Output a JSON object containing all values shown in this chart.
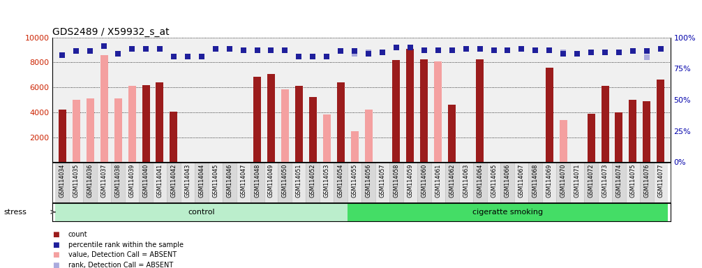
{
  "title": "GDS2489 / X59932_s_at",
  "samples": [
    "GSM114034",
    "GSM114035",
    "GSM114036",
    "GSM114037",
    "GSM114038",
    "GSM114039",
    "GSM114040",
    "GSM114041",
    "GSM114042",
    "GSM114043",
    "GSM114044",
    "GSM114045",
    "GSM114046",
    "GSM114047",
    "GSM114048",
    "GSM114049",
    "GSM114050",
    "GSM114051",
    "GSM114052",
    "GSM114053",
    "GSM114054",
    "GSM114055",
    "GSM114056",
    "GSM114057",
    "GSM114058",
    "GSM114059",
    "GSM114060",
    "GSM114061",
    "GSM114062",
    "GSM114063",
    "GSM114064",
    "GSM114065",
    "GSM114066",
    "GSM114067",
    "GSM114068",
    "GSM114069",
    "GSM114070",
    "GSM114071",
    "GSM114072",
    "GSM114073",
    "GSM114074",
    "GSM114075",
    "GSM114076",
    "GSM114077"
  ],
  "count": [
    4200,
    null,
    null,
    null,
    null,
    null,
    6200,
    6400,
    4050,
    null,
    null,
    null,
    null,
    null,
    6850,
    7050,
    null,
    6100,
    5200,
    null,
    6400,
    null,
    null,
    null,
    8200,
    9100,
    8250,
    null,
    4600,
    null,
    8250,
    null,
    null,
    null,
    null,
    7600,
    null,
    null,
    3900,
    6100,
    4000,
    5000,
    4900,
    6600
  ],
  "count_absent": [
    null,
    5000,
    5100,
    8600,
    5100,
    6100,
    null,
    null,
    null,
    null,
    null,
    null,
    null,
    null,
    null,
    null,
    5850,
    null,
    null,
    3800,
    null,
    2500,
    4200,
    null,
    null,
    null,
    null,
    8100,
    null,
    null,
    null,
    null,
    null,
    null,
    null,
    null,
    3400,
    null,
    null,
    null,
    null,
    null,
    null,
    null
  ],
  "rank": [
    86,
    89,
    89,
    93,
    87,
    91,
    91,
    91,
    85,
    85,
    85,
    91,
    91,
    90,
    90,
    90,
    90,
    85,
    85,
    85,
    89,
    89,
    87,
    88,
    92,
    92,
    90,
    90,
    90,
    91,
    91,
    90,
    90,
    91,
    90,
    90,
    87,
    87,
    88,
    88,
    88,
    89,
    89,
    91
  ],
  "rank_absent": [
    null,
    null,
    null,
    93,
    null,
    null,
    null,
    null,
    null,
    null,
    null,
    null,
    null,
    null,
    null,
    null,
    null,
    null,
    null,
    null,
    null,
    87,
    88,
    null,
    null,
    null,
    null,
    null,
    null,
    null,
    null,
    null,
    null,
    null,
    null,
    null,
    88,
    null,
    null,
    null,
    null,
    null,
    84,
    null
  ],
  "groups": [
    {
      "label": "control",
      "start": 0,
      "end": 20
    },
    {
      "label": "cigeratte smoking",
      "start": 21,
      "end": 43
    }
  ],
  "stress_label": "stress",
  "ylim_left": [
    0,
    10000
  ],
  "ylim_right": [
    0,
    100
  ],
  "yticks_left": [
    2000,
    4000,
    6000,
    8000,
    10000
  ],
  "yticks_right": [
    0,
    25,
    50,
    75,
    100
  ],
  "color_count": "#9B1C1C",
  "color_count_absent": "#F4A0A0",
  "color_rank": "#1F1F9B",
  "color_rank_absent": "#AAAADD",
  "color_group_control": "#BBEECC",
  "color_group_smoking": "#44DD66",
  "color_background_plot": "#F0F0F0",
  "color_ytick_left": "#CC2200",
  "color_ytick_right": "#0000AA",
  "bar_width": 0.55,
  "dot_size": 28,
  "legend_items": [
    {
      "color": "#9B1C1C",
      "label": "count"
    },
    {
      "color": "#1F1F9B",
      "label": "percentile rank within the sample"
    },
    {
      "color": "#F4A0A0",
      "label": "value, Detection Call = ABSENT"
    },
    {
      "color": "#AAAADD",
      "label": "rank, Detection Call = ABSENT"
    }
  ]
}
